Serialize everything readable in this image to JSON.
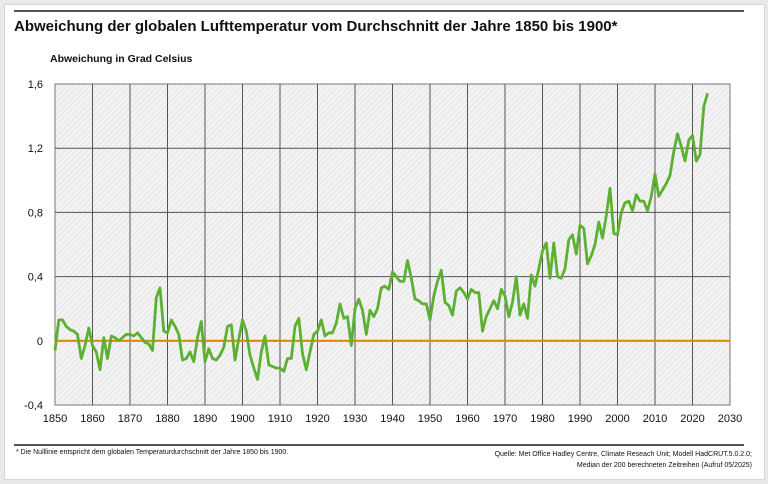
{
  "title": "Abweichung der globalen Lufttemperatur vom Durchschnitt der Jahre 1850 bis 1900*",
  "footnote": "* Die Nulllinie entspricht dem globalen Temperaturdurchschnitt der Jahre 1850 bis 1900.",
  "source_line1": "Quelle: Met Office Hadley Centre, Climate Reseach Unit; Modell HadCRUT.5.0.2.0;",
  "source_line2": "Median der 200 berechneten Zeitreihen (Aufruf 05/2025)",
  "chart_data": {
    "type": "line",
    "title": "Abweichung der globalen Lufttemperatur vom Durchschnitt der Jahre 1850 bis 1900*",
    "ylabel": "Abweichung in Grad Celsius",
    "xlabel": "",
    "xlim": [
      1850,
      2030
    ],
    "ylim": [
      -0.4,
      1.6
    ],
    "xticks": [
      "1850",
      "1860",
      "1870",
      "1880",
      "1890",
      "1900",
      "1910",
      "1920",
      "1930",
      "1940",
      "1950",
      "1960",
      "1970",
      "1980",
      "1990",
      "2000",
      "2010",
      "2020",
      "2030"
    ],
    "yticks": [
      "-0,4",
      "0",
      "0,4",
      "0,8",
      "1,2",
      "1,6"
    ],
    "ytick_values": [
      -0.4,
      0,
      0.4,
      0.8,
      1.2,
      1.6
    ],
    "grid": true,
    "legend": "none",
    "reference_line": 0,
    "colors": {
      "series": "#5cb032",
      "reference": "#e08a00",
      "grid": "#555555"
    },
    "series": [
      {
        "x_start": 1850,
        "values": [
          -0.06,
          0.13,
          0.13,
          0.09,
          0.07,
          0.06,
          0.04,
          -0.11,
          -0.03,
          0.08,
          -0.03,
          -0.07,
          -0.18,
          0.02,
          -0.11,
          0.03,
          0.02,
          0.0,
          0.02,
          0.04,
          0.04,
          0.03,
          0.05,
          0.02,
          -0.01,
          -0.02,
          -0.06,
          0.27,
          0.33,
          0.06,
          0.05,
          0.13,
          0.09,
          0.04,
          -0.12,
          -0.11,
          -0.07,
          -0.13,
          0.02,
          0.12,
          -0.13,
          -0.05,
          -0.11,
          -0.12,
          -0.09,
          -0.04,
          0.09,
          0.1,
          -0.12,
          0.01,
          0.13,
          0.06,
          -0.09,
          -0.17,
          -0.24,
          -0.07,
          0.03,
          -0.15,
          -0.16,
          -0.17,
          -0.17,
          -0.19,
          -0.11,
          -0.11,
          0.09,
          0.14,
          -0.08,
          -0.18,
          -0.07,
          0.04,
          0.06,
          0.13,
          0.03,
          0.05,
          0.05,
          0.11,
          0.23,
          0.14,
          0.15,
          -0.03,
          0.2,
          0.26,
          0.19,
          0.04,
          0.19,
          0.15,
          0.2,
          0.33,
          0.34,
          0.32,
          0.43,
          0.4,
          0.37,
          0.37,
          0.5,
          0.39,
          0.26,
          0.25,
          0.23,
          0.23,
          0.13,
          0.28,
          0.37,
          0.44,
          0.24,
          0.22,
          0.16,
          0.31,
          0.33,
          0.3,
          0.26,
          0.32,
          0.3,
          0.3,
          0.06,
          0.15,
          0.2,
          0.25,
          0.2,
          0.32,
          0.28,
          0.15,
          0.24,
          0.4,
          0.16,
          0.23,
          0.14,
          0.41,
          0.34,
          0.45,
          0.56,
          0.61,
          0.39,
          0.61,
          0.4,
          0.39,
          0.45,
          0.63,
          0.66,
          0.54,
          0.72,
          0.7,
          0.48,
          0.53,
          0.6,
          0.74,
          0.64,
          0.78,
          0.95,
          0.67,
          0.66,
          0.8,
          0.86,
          0.87,
          0.81,
          0.91,
          0.87,
          0.87,
          0.81,
          0.9,
          1.04,
          0.9,
          0.94,
          0.98,
          1.03,
          1.18,
          1.29,
          1.21,
          1.12,
          1.25,
          1.28,
          1.12,
          1.16,
          1.46,
          1.54
        ]
      }
    ]
  }
}
